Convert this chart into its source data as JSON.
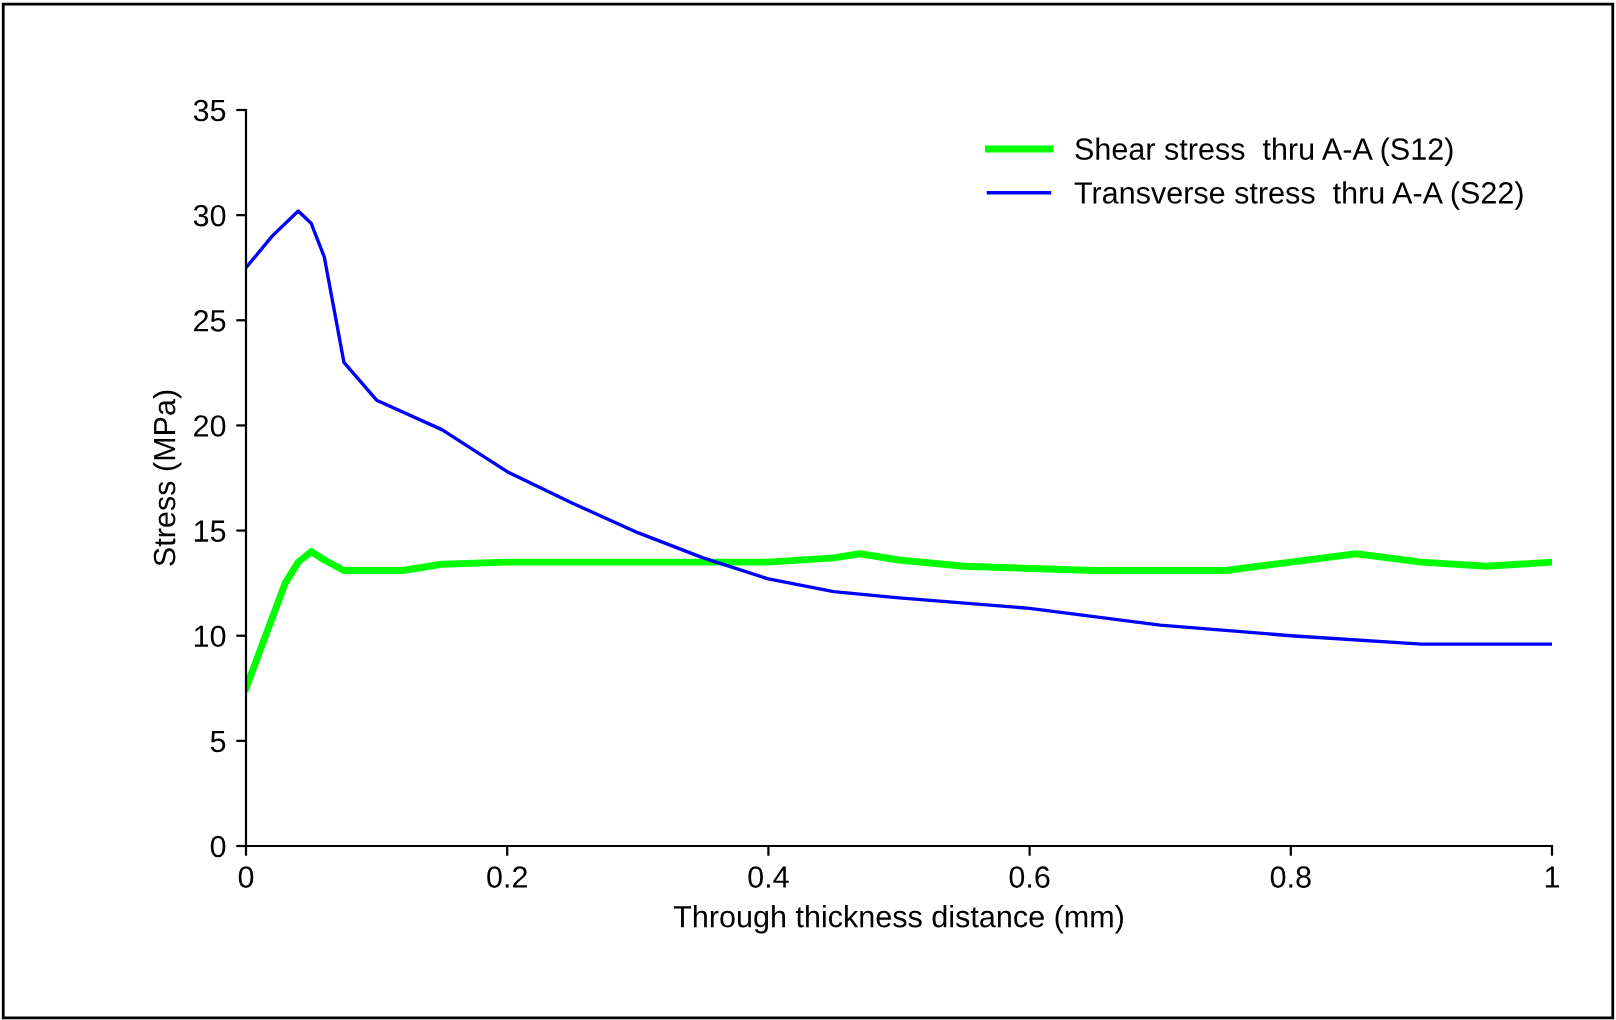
{
  "chart_data": {
    "type": "line",
    "xlabel": "Through thickness distance (mm)",
    "ylabel": "Stress (MPa)",
    "xlim": [
      0,
      1
    ],
    "xticks": [
      0,
      0.2,
      0.4,
      0.6,
      0.8,
      1
    ],
    "ylim": [
      0,
      35
    ],
    "yticks": [
      0,
      5,
      10,
      15,
      20,
      25,
      30,
      35
    ],
    "grid": false,
    "legend": "top right",
    "marker": "none",
    "line_style": "solid",
    "series": [
      {
        "name": "Shear stress  thru A-A (S12)",
        "color": "#00ff00",
        "x": [
          0,
          0.03,
          0.04,
          0.05,
          0.06,
          0.075,
          0.12,
          0.15,
          0.2,
          0.4,
          0.45,
          0.47,
          0.5,
          0.55,
          0.65,
          0.75,
          0.8,
          0.85,
          0.9,
          0.95,
          1.0
        ],
        "values": [
          7.5,
          12.5,
          13.5,
          14,
          13.6,
          13.1,
          13.1,
          13.4,
          13.5,
          13.5,
          13.7,
          13.9,
          13.6,
          13.3,
          13.1,
          13.1,
          13.5,
          13.9,
          13.5,
          13.3,
          13.5
        ]
      },
      {
        "name": "Transverse stress  thru A-A (S22)",
        "color": "#0000ff",
        "x": [
          0,
          0.02,
          0.04,
          0.05,
          0.06,
          0.075,
          0.1,
          0.15,
          0.2,
          0.25,
          0.3,
          0.35,
          0.4,
          0.45,
          0.5,
          0.6,
          0.7,
          0.8,
          0.9,
          1.0
        ],
        "values": [
          27.5,
          29.0,
          30.2,
          29.6,
          28,
          23,
          21.2,
          19.8,
          17.8,
          16.3,
          14.9,
          13.7,
          12.7,
          12.1,
          11.8,
          11.3,
          10.5,
          10.0,
          9.6,
          9.6
        ]
      }
    ]
  }
}
